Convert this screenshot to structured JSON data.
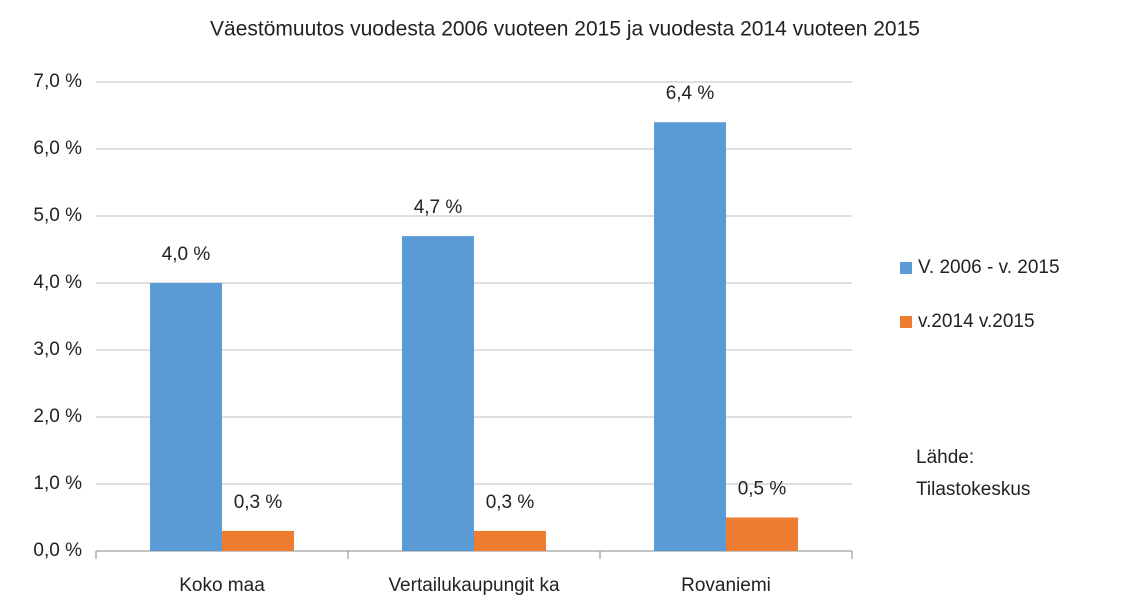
{
  "chart_data": {
    "type": "bar",
    "title": "Väestömuutos vuodesta 2006 vuoteen 2015 ja vuodesta 2014 vuoteen 2015",
    "categories": [
      "Koko maa",
      "Vertailukaupungit ka",
      "Rovaniemi"
    ],
    "series": [
      {
        "name": "V. 2006 - v. 2015",
        "color": "#5b9bd5",
        "values": [
          4.0,
          4.7,
          6.4
        ],
        "value_labels": [
          "4,0 %",
          "4,7 %",
          "6,4 %"
        ]
      },
      {
        "name": "v.2014 v.2015",
        "color": "#ed7d31",
        "values": [
          0.3,
          0.3,
          0.5
        ],
        "value_labels": [
          "0,3 %",
          "0,3 %",
          "0,5 %"
        ]
      }
    ],
    "ylim": [
      0,
      7
    ],
    "yticks": [
      {
        "value": 0,
        "label": "0,0 %"
      },
      {
        "value": 1,
        "label": "1,0 %"
      },
      {
        "value": 2,
        "label": "2,0 %"
      },
      {
        "value": 3,
        "label": "3,0 %"
      },
      {
        "value": 4,
        "label": "4,0 %"
      },
      {
        "value": 5,
        "label": "5,0 %"
      },
      {
        "value": 6,
        "label": "6,0 %"
      },
      {
        "value": 7,
        "label": "7,0 %"
      }
    ],
    "grid": true,
    "legend": "right",
    "source": [
      "Lähde:",
      "Tilastokeskus"
    ]
  }
}
